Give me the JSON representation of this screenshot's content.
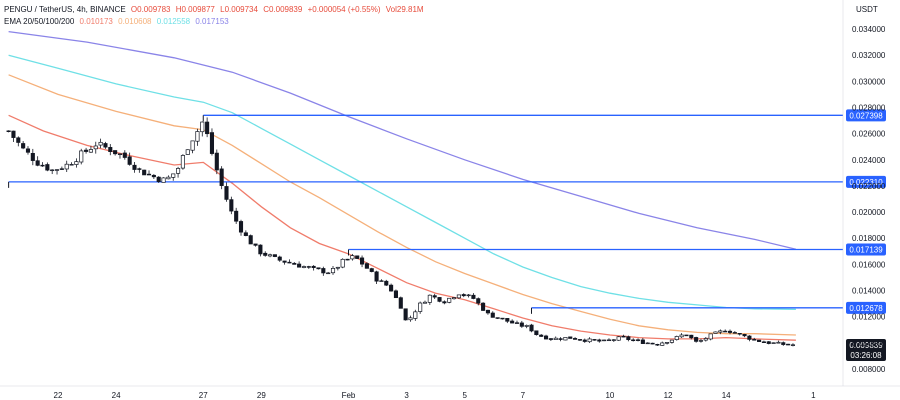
{
  "header": {
    "symbol": "PENGU / TetherUS, 4h, BINANCE",
    "ohlc": {
      "open": "O0.009783",
      "high": "H0.009877",
      "low": "L0.009734",
      "close": "C0.009839",
      "change": "+0.000054 (+0.55%)",
      "volume": "Vol29.81M"
    },
    "ema_label": "EMA 20/50/100/200",
    "ema_values": [
      "0.010173",
      "0.010608",
      "0.012558",
      "0.017153"
    ]
  },
  "colors": {
    "ema20": "#f07c6b",
    "ema50": "#f5b07a",
    "ema100": "#6fe0e6",
    "ema200": "#8a84e8",
    "levels": "#2962ff",
    "candle": "#131722",
    "current_price_bg": "#131722"
  },
  "chart_data": {
    "type": "candlestick",
    "y_unit": "USDT",
    "ylim": [
      0.0072,
      0.0362
    ],
    "y_ticks": [
      "0.034000",
      "0.032000",
      "0.030000",
      "0.028000",
      "0.026000",
      "0.024000",
      "0.022000",
      "0.020000",
      "0.018000",
      "0.016000",
      "0.014000",
      "0.012000",
      "0.010000",
      "0.008000"
    ],
    "x_ticks": [
      {
        "label": "22",
        "day": 22
      },
      {
        "label": "24",
        "day": 24
      },
      {
        "label": "27",
        "day": 27
      },
      {
        "label": "29",
        "day": 29
      },
      {
        "label": "Feb",
        "day": 32
      },
      {
        "label": "3",
        "day": 34
      },
      {
        "label": "5",
        "day": 36
      },
      {
        "label": "7",
        "day": 38
      },
      {
        "label": "10",
        "day": 41
      },
      {
        "label": "12",
        "day": 43
      },
      {
        "label": "14",
        "day": 45
      },
      {
        "label": "1",
        "day": 48
      }
    ],
    "x_range": [
      20.3,
      48
    ],
    "levels": [
      {
        "label": "0.027398",
        "value": 0.027398,
        "start_day": 27.0
      },
      {
        "label": "0.022310",
        "value": 0.02231,
        "start_day": 20.3
      },
      {
        "label": "0.017139",
        "value": 0.017139,
        "start_day": 32.0
      },
      {
        "label": "0.012678",
        "value": 0.012678,
        "start_day": 38.3
      }
    ],
    "current_price": {
      "label": "0.009839",
      "value": 0.009839,
      "countdown": "03:26:08"
    },
    "close_path": [
      [
        20.3,
        0.0262
      ],
      [
        20.8,
        0.0248
      ],
      [
        21.3,
        0.0238
      ],
      [
        21.8,
        0.0232
      ],
      [
        22.3,
        0.0236
      ],
      [
        22.8,
        0.0244
      ],
      [
        23.3,
        0.0252
      ],
      [
        23.8,
        0.0248
      ],
      [
        24.3,
        0.0242
      ],
      [
        24.8,
        0.0232
      ],
      [
        25.3,
        0.0227
      ],
      [
        25.7,
        0.0224
      ],
      [
        26.1,
        0.0232
      ],
      [
        26.5,
        0.0252
      ],
      [
        26.8,
        0.0262
      ],
      [
        27.0,
        0.027
      ],
      [
        27.3,
        0.0245
      ],
      [
        27.6,
        0.0222
      ],
      [
        28.0,
        0.0198
      ],
      [
        28.4,
        0.0183
      ],
      [
        28.9,
        0.017
      ],
      [
        29.5,
        0.0164
      ],
      [
        30.2,
        0.016
      ],
      [
        30.8,
        0.0156
      ],
      [
        31.4,
        0.0154
      ],
      [
        31.8,
        0.0162
      ],
      [
        32.2,
        0.0166
      ],
      [
        32.6,
        0.0158
      ],
      [
        33.0,
        0.0148
      ],
      [
        33.4,
        0.0143
      ],
      [
        33.8,
        0.0128
      ],
      [
        34.0,
        0.0115
      ],
      [
        34.4,
        0.0128
      ],
      [
        34.8,
        0.0136
      ],
      [
        35.3,
        0.0132
      ],
      [
        35.8,
        0.0138
      ],
      [
        36.3,
        0.0134
      ],
      [
        36.8,
        0.0122
      ],
      [
        37.3,
        0.0118
      ],
      [
        37.8,
        0.0114
      ],
      [
        38.2,
        0.0112
      ],
      [
        38.5,
        0.0106
      ],
      [
        39.0,
        0.0103
      ],
      [
        39.6,
        0.0104
      ],
      [
        40.2,
        0.0102
      ],
      [
        40.8,
        0.0101
      ],
      [
        41.4,
        0.0104
      ],
      [
        42.0,
        0.0101
      ],
      [
        42.6,
        0.0099
      ],
      [
        43.2,
        0.0103
      ],
      [
        43.6,
        0.0107
      ],
      [
        44.0,
        0.01
      ],
      [
        44.5,
        0.0106
      ],
      [
        45.0,
        0.011
      ],
      [
        45.5,
        0.0106
      ],
      [
        46.0,
        0.0102
      ],
      [
        46.5,
        0.01
      ],
      [
        47.0,
        0.00988
      ],
      [
        47.4,
        0.00984
      ]
    ],
    "ema_series": [
      {
        "name": "ema20",
        "points": [
          [
            20.3,
            0.0274
          ],
          [
            21.5,
            0.0262
          ],
          [
            23,
            0.0251
          ],
          [
            24.5,
            0.0243
          ],
          [
            26,
            0.0236
          ],
          [
            27,
            0.0238
          ],
          [
            28,
            0.0222
          ],
          [
            29,
            0.0204
          ],
          [
            30,
            0.0188
          ],
          [
            31,
            0.0176
          ],
          [
            32,
            0.0168
          ],
          [
            33,
            0.0157
          ],
          [
            34,
            0.0146
          ],
          [
            35,
            0.0138
          ],
          [
            36,
            0.0133
          ],
          [
            37,
            0.0126
          ],
          [
            38,
            0.0119
          ],
          [
            39,
            0.0113
          ],
          [
            40,
            0.0109
          ],
          [
            41,
            0.0106
          ],
          [
            42,
            0.0104
          ],
          [
            43,
            0.0103
          ],
          [
            44,
            0.0103
          ],
          [
            45,
            0.0104
          ],
          [
            46,
            0.0103
          ],
          [
            47.4,
            0.0102
          ]
        ]
      },
      {
        "name": "ema50",
        "points": [
          [
            20.3,
            0.0305
          ],
          [
            22,
            0.029
          ],
          [
            24,
            0.0277
          ],
          [
            26,
            0.0266
          ],
          [
            27,
            0.0263
          ],
          [
            28,
            0.0251
          ],
          [
            29,
            0.0237
          ],
          [
            30,
            0.0223
          ],
          [
            31,
            0.0211
          ],
          [
            32,
            0.0198
          ],
          [
            33,
            0.0185
          ],
          [
            34,
            0.0173
          ],
          [
            35,
            0.0162
          ],
          [
            36,
            0.0153
          ],
          [
            37,
            0.0145
          ],
          [
            38,
            0.0137
          ],
          [
            39,
            0.013
          ],
          [
            40,
            0.0124
          ],
          [
            41,
            0.0118
          ],
          [
            42,
            0.0113
          ],
          [
            43,
            0.011
          ],
          [
            44,
            0.0108
          ],
          [
            45,
            0.0107
          ],
          [
            46,
            0.0107
          ],
          [
            47.4,
            0.0106
          ]
        ]
      },
      {
        "name": "ema100",
        "points": [
          [
            20.3,
            0.032
          ],
          [
            22,
            0.031
          ],
          [
            24,
            0.0298
          ],
          [
            26,
            0.0288
          ],
          [
            27,
            0.0284
          ],
          [
            28,
            0.0276
          ],
          [
            29,
            0.0264
          ],
          [
            30,
            0.0252
          ],
          [
            31,
            0.024
          ],
          [
            32,
            0.0228
          ],
          [
            33,
            0.0216
          ],
          [
            34,
            0.0204
          ],
          [
            35,
            0.0192
          ],
          [
            36,
            0.018
          ],
          [
            37,
            0.0168
          ],
          [
            38,
            0.0158
          ],
          [
            39,
            0.015
          ],
          [
            40,
            0.0143
          ],
          [
            41,
            0.0138
          ],
          [
            42,
            0.0134
          ],
          [
            43,
            0.0131
          ],
          [
            44,
            0.0129
          ],
          [
            45,
            0.0127
          ],
          [
            46,
            0.0126
          ],
          [
            47.4,
            0.01256
          ]
        ]
      },
      {
        "name": "ema200",
        "points": [
          [
            20.3,
            0.0338
          ],
          [
            23,
            0.033
          ],
          [
            26,
            0.0318
          ],
          [
            28,
            0.0307
          ],
          [
            30,
            0.0291
          ],
          [
            32,
            0.0273
          ],
          [
            34,
            0.0256
          ],
          [
            36,
            0.024
          ],
          [
            38,
            0.0225
          ],
          [
            40,
            0.0212
          ],
          [
            42,
            0.0199
          ],
          [
            44,
            0.0188
          ],
          [
            46,
            0.0179
          ],
          [
            47.4,
            0.01715
          ]
        ]
      }
    ]
  }
}
